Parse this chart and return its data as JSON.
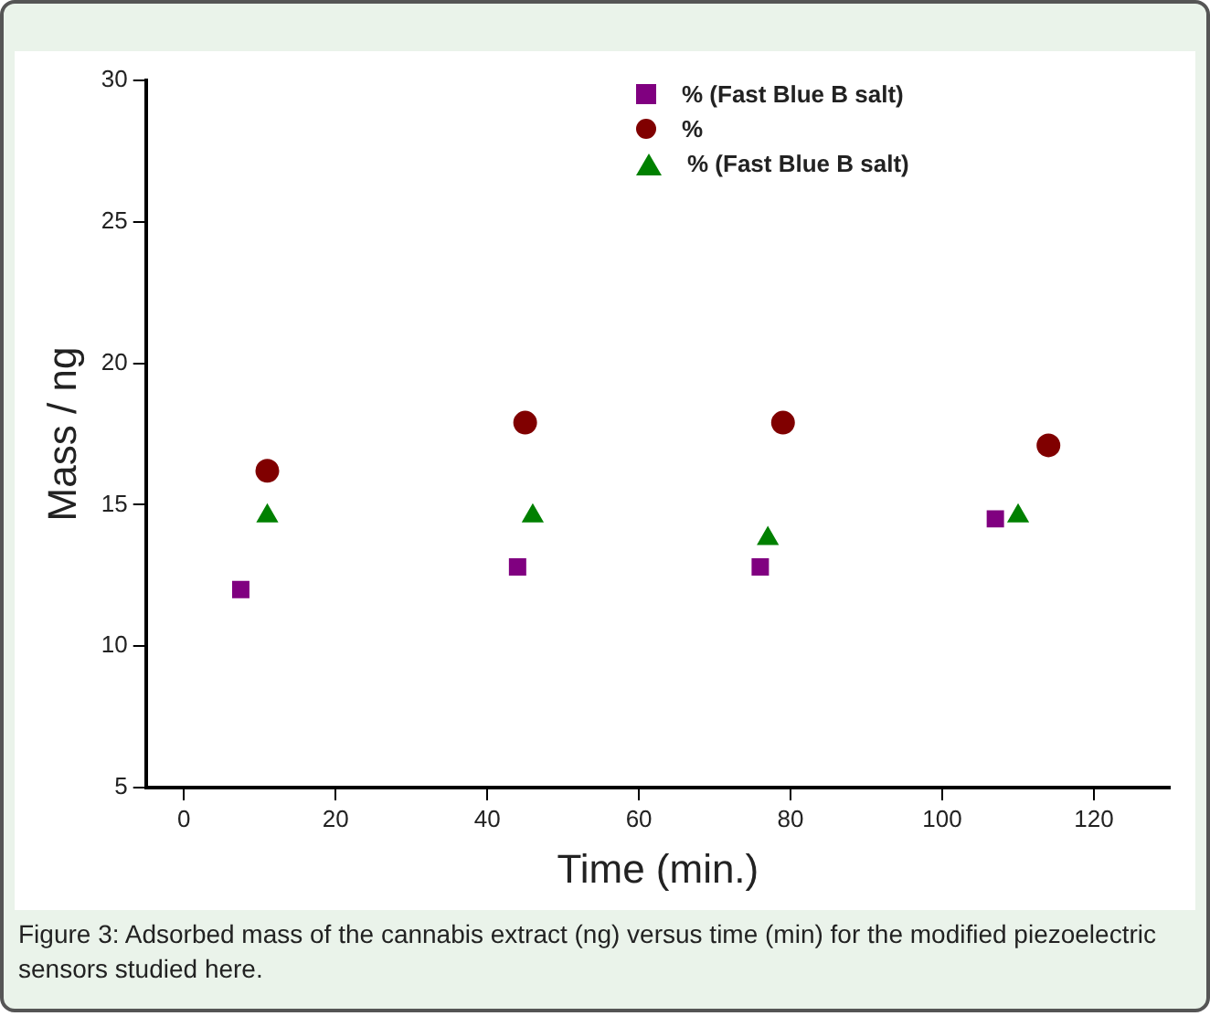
{
  "chart_data": {
    "type": "scatter",
    "xlabel": "Time (min.)",
    "ylabel": "Mass / ng",
    "xlim": [
      -5,
      130
    ],
    "ylim": [
      5,
      30
    ],
    "xticks": [
      0,
      20,
      40,
      60,
      80,
      100,
      120
    ],
    "yticks": [
      5,
      10,
      15,
      20,
      25,
      30
    ],
    "grid": false,
    "legend": "top right",
    "series": [
      {
        "name": "% (Fast Blue B salt)",
        "color": "#800080",
        "marker": "square",
        "x": [
          7.5,
          44,
          76,
          107
        ],
        "values": [
          12.0,
          12.8,
          12.8,
          14.5
        ]
      },
      {
        "name": "%",
        "color": "#800000",
        "marker": "circle",
        "x": [
          11,
          45,
          79,
          114
        ],
        "values": [
          16.2,
          17.9,
          17.9,
          17.1
        ]
      },
      {
        "name": "% (Fast Blue B salt)",
        "color": "#008000",
        "marker": "triangle",
        "x": [
          11,
          46,
          77,
          110
        ],
        "values": [
          14.6,
          14.6,
          13.8,
          14.6
        ]
      }
    ],
    "annotations": [
      "Figure 3: Adsorbed mass of the cannabis extract (ng) versus time (min) for the modified piezoelectric sensors studied here."
    ]
  }
}
